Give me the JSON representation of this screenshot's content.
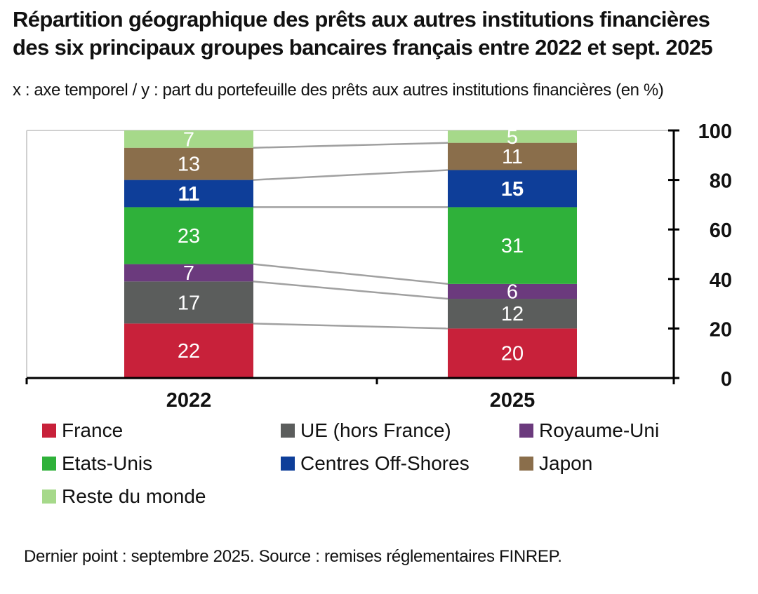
{
  "title": "Répartition géographique des prêts aux autres institutions financières des six principaux groupes bancaires français entre 2022 et sept. 2025",
  "subtitle": "x : axe temporel / y : part du portefeuille des prêts aux autres institutions financières (en %)",
  "source": "Dernier point : septembre 2025. Source : remises réglementaires FINREP.",
  "chart_data": {
    "type": "bar",
    "stacked": true,
    "categories": [
      "2022",
      "2025"
    ],
    "ylim": [
      0,
      100
    ],
    "yticks": [
      "0",
      "20",
      "40",
      "60",
      "80",
      "100"
    ],
    "yaxis_side": "right",
    "grid": false,
    "legend_position": "bottom",
    "series": [
      {
        "name": "France",
        "values": [
          22,
          20
        ],
        "color": "#c8213a",
        "label_bold": false
      },
      {
        "name": "UE (hors France)",
        "values": [
          17,
          12
        ],
        "color": "#5b5d5c",
        "label_bold": false
      },
      {
        "name": "Royaume-Uni",
        "values": [
          7,
          6
        ],
        "color": "#6b3a7d",
        "label_bold": false
      },
      {
        "name": "Etats-Unis",
        "values": [
          23,
          31
        ],
        "color": "#2fb13a",
        "label_bold": false
      },
      {
        "name": "Centres Off-Shores",
        "values": [
          11,
          15
        ],
        "color": "#0e3e99",
        "label_bold": true
      },
      {
        "name": "Japon",
        "values": [
          13,
          11
        ],
        "color": "#8a6e4b",
        "label_bold": false
      },
      {
        "name": "Reste du monde",
        "values": [
          7,
          5
        ],
        "color": "#a6d98a",
        "label_bold": false
      }
    ],
    "data_labels": [
      [
        "22",
        "17",
        "7",
        "23",
        "11",
        "13",
        "7"
      ],
      [
        "20",
        "12",
        "6",
        "31",
        "15",
        "11",
        "5"
      ]
    ],
    "connector_lines": true
  }
}
